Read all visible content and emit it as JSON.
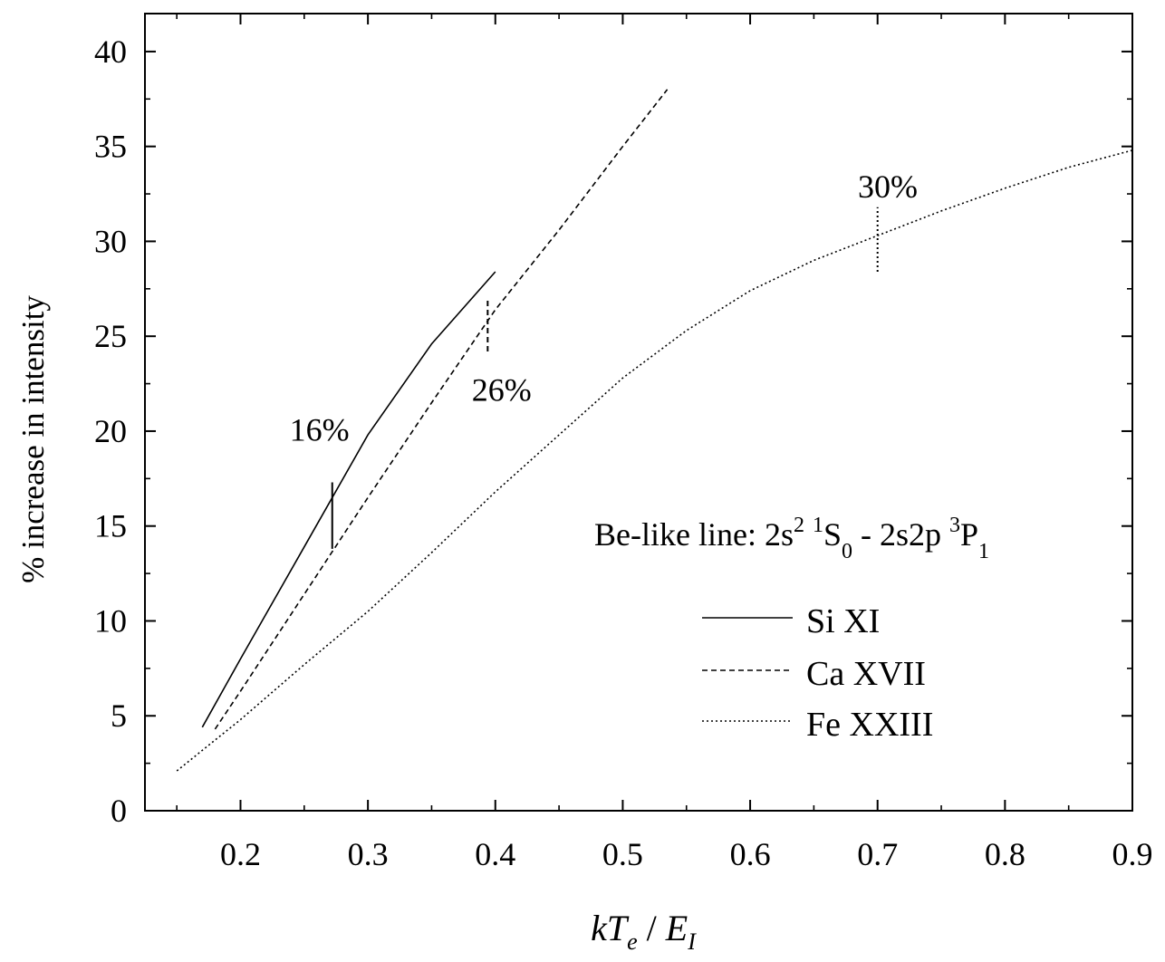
{
  "chart_data": {
    "type": "line",
    "xlabel": {
      "main": "kT",
      "sub_e": "e",
      "sep": " / ",
      "main2": "E",
      "sub_i": "I"
    },
    "ylabel": "% increase in intensity",
    "xlim": [
      0.125,
      0.9
    ],
    "ylim": [
      0,
      42
    ],
    "xticks": [
      0.2,
      0.3,
      0.4,
      0.5,
      0.6,
      0.7,
      0.8,
      0.9
    ],
    "xtick_labels": [
      "0.2",
      "0.3",
      "0.4",
      "0.5",
      "0.6",
      "0.7",
      "0.8",
      "0.9"
    ],
    "yticks": [
      0,
      5,
      10,
      15,
      20,
      25,
      30,
      35,
      40
    ],
    "ytick_labels": [
      "0",
      "5",
      "10",
      "15",
      "20",
      "25",
      "30",
      "35",
      "40"
    ],
    "grid": false,
    "legend_position": "right",
    "legend_title": {
      "a": "Be-like line: 2s",
      "b": "2",
      "c": " ",
      "d": "1",
      "e": "S",
      "f": "0",
      "g": " - 2s2p ",
      "h": "3",
      "i": "P",
      "j": "1"
    },
    "series": [
      {
        "name": "Si XI",
        "style": "solid",
        "x": [
          0.17,
          0.2,
          0.25,
          0.3,
          0.35,
          0.4
        ],
        "y": [
          4.4,
          8.0,
          13.9,
          19.8,
          24.6,
          28.4
        ]
      },
      {
        "name": "Ca XVII",
        "style": "dashed",
        "x": [
          0.18,
          0.2,
          0.25,
          0.3,
          0.35,
          0.4,
          0.45,
          0.5,
          0.535
        ],
        "y": [
          4.3,
          6.3,
          11.4,
          16.5,
          21.5,
          26.4,
          30.6,
          35.0,
          38.0
        ]
      },
      {
        "name": "Fe XXIII",
        "style": "dotted",
        "x": [
          0.15,
          0.2,
          0.25,
          0.3,
          0.35,
          0.4,
          0.45,
          0.5,
          0.55,
          0.6,
          0.65,
          0.7,
          0.75,
          0.8,
          0.85,
          0.9
        ],
        "y": [
          2.1,
          4.8,
          7.7,
          10.5,
          13.6,
          16.8,
          19.8,
          22.8,
          25.3,
          27.4,
          29.0,
          30.3,
          31.6,
          32.8,
          33.9,
          34.8
        ]
      }
    ],
    "annotations": [
      {
        "text": "16%",
        "marker_x": 0.272,
        "marker_y": [
          13.8,
          17.3
        ],
        "style": "solid",
        "label_x": 0.262,
        "label_y": 19.5
      },
      {
        "text": "26%",
        "marker_x": 0.394,
        "marker_y": [
          24.2,
          26.9
        ],
        "style": "dashed",
        "label_x": 0.405,
        "label_y": 21.6
      },
      {
        "text": "30%",
        "marker_x": 0.7,
        "marker_y": [
          28.4,
          31.8
        ],
        "style": "dotted",
        "label_x": 0.708,
        "label_y": 32.3
      }
    ]
  }
}
